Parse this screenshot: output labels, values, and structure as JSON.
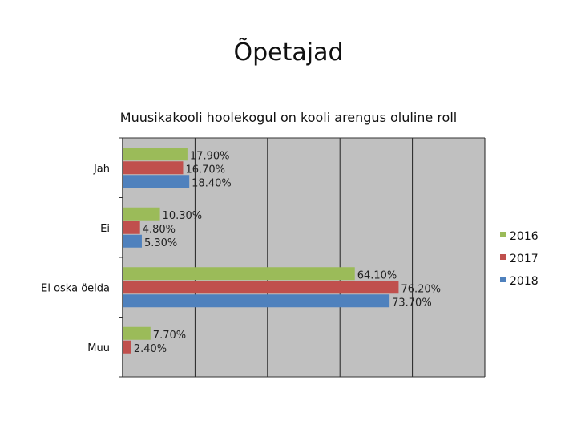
{
  "slide_title": "Õpetajad",
  "chart_data": {
    "type": "bar",
    "orientation": "horizontal",
    "title": "Muusikakooli hoolekogul on kooli arengus oluline roll",
    "categories": [
      "Jah",
      "Ei",
      "Ei oska öelda",
      "Muu"
    ],
    "series": [
      {
        "name": "2016",
        "color": "#9bbb59",
        "values": [
          17.9,
          10.3,
          64.1,
          7.7
        ],
        "labels": [
          "17.90%",
          "10.30%",
          "64.10%",
          "7.70%"
        ]
      },
      {
        "name": "2017",
        "color": "#c0504d",
        "values": [
          16.7,
          4.8,
          76.2,
          2.4
        ],
        "labels": [
          "16.70%",
          "4.80%",
          "76.20%",
          "2.40%"
        ]
      },
      {
        "name": "2018",
        "color": "#4f81bd",
        "values": [
          18.4,
          5.3,
          73.7,
          null
        ],
        "labels": [
          "18.40%",
          "5.30%",
          "73.70%",
          ""
        ]
      }
    ],
    "xlim": [
      0,
      100
    ],
    "grid": true,
    "plot_background": "#c0c0c0",
    "legend_position": "right"
  }
}
